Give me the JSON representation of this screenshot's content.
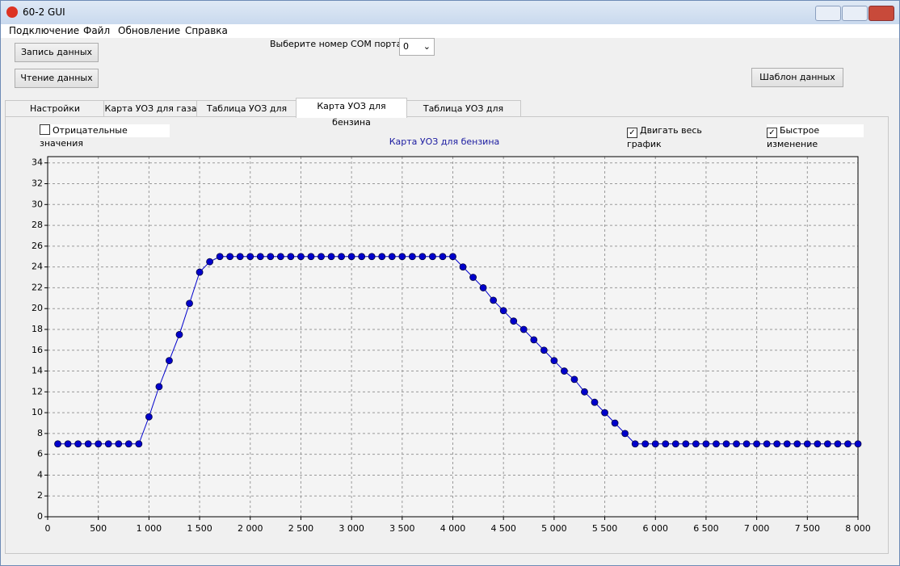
{
  "window": {
    "title": "60-2 GUI"
  },
  "menu": [
    "Подключение",
    "Файл",
    "Обновление",
    "Справка"
  ],
  "buttons": {
    "write": "Запись данных",
    "read": "Чтение данных",
    "template": "Шаблон данных"
  },
  "com_port": {
    "label": "Выберите номер COM порта",
    "value": "0"
  },
  "tabs": [
    {
      "label": "Настройки вариатора",
      "selected": false
    },
    {
      "label": "Карта УОЗ для газа",
      "selected": false
    },
    {
      "label": "Таблица УОЗ для газа",
      "selected": false
    },
    {
      "label": "Карта УОЗ для бензина",
      "selected": true
    },
    {
      "label": "Таблица УОЗ для бензина",
      "selected": false
    }
  ],
  "checkboxes": [
    {
      "label": "Отрицательные значения",
      "checked": false
    },
    {
      "label": "Двигать весь график",
      "checked": true
    },
    {
      "label": "Быстрое изменение",
      "checked": true
    }
  ],
  "chart_data": {
    "type": "line",
    "title": "Карта УОЗ для бензина",
    "color": "#0000cc",
    "grid": true,
    "x": [
      100,
      200,
      300,
      400,
      500,
      600,
      700,
      800,
      900,
      1000,
      1100,
      1200,
      1300,
      1400,
      1500,
      1600,
      1700,
      1800,
      1900,
      2000,
      2100,
      2200,
      2300,
      2400,
      2500,
      2600,
      2700,
      2800,
      2900,
      3000,
      3100,
      3200,
      3300,
      3400,
      3500,
      3600,
      3700,
      3800,
      3900,
      4000,
      4100,
      4200,
      4300,
      4400,
      4500,
      4600,
      4700,
      4800,
      4900,
      5000,
      5100,
      5200,
      5300,
      5400,
      5500,
      5600,
      5700,
      5800,
      5900,
      6000,
      6100,
      6200,
      6300,
      6400,
      6500,
      6600,
      6700,
      6800,
      6900,
      7000,
      7100,
      7200,
      7300,
      7400,
      7500,
      7600,
      7700,
      7800,
      7900,
      8000
    ],
    "values": [
      7,
      7,
      7,
      7,
      7,
      7,
      7,
      7,
      7,
      9.6,
      12.5,
      15,
      17.5,
      20.5,
      23.5,
      24.5,
      25,
      25,
      25,
      25,
      25,
      25,
      25,
      25,
      25,
      25,
      25,
      25,
      25,
      25,
      25,
      25,
      25,
      25,
      25,
      25,
      25,
      25,
      25,
      25,
      24,
      23,
      22,
      20.8,
      19.8,
      18.8,
      18,
      17,
      16,
      15,
      14,
      13.2,
      12,
      11,
      10,
      9,
      8,
      7,
      7,
      7,
      7,
      7,
      7,
      7,
      7,
      7,
      7,
      7,
      7,
      7,
      7,
      7,
      7,
      7,
      7,
      7,
      7,
      7,
      7,
      7
    ],
    "xlim": [
      0,
      8000
    ],
    "xticks": [
      0,
      500,
      {
        "value": 1000,
        "label": "1 000"
      },
      {
        "value": 1500,
        "label": "1 500"
      },
      {
        "value": 2000,
        "label": "2 000"
      },
      {
        "value": 2500,
        "label": "2 500"
      },
      {
        "value": 3000,
        "label": "3 000"
      },
      {
        "value": 3500,
        "label": "3 500"
      },
      {
        "value": 4000,
        "label": "4 000"
      },
      {
        "value": 4500,
        "label": "4 500"
      },
      {
        "value": 5000,
        "label": "5 000"
      },
      {
        "value": 5500,
        "label": "5 500"
      },
      {
        "value": 6000,
        "label": "6 000"
      },
      {
        "value": 6500,
        "label": "6 500"
      },
      {
        "value": 7000,
        "label": "7 000"
      },
      {
        "value": 7500,
        "label": "7 500"
      },
      {
        "value": 8000,
        "label": "8 000"
      }
    ],
    "ylim": [
      0,
      34.6
    ],
    "yticks": [
      0,
      2,
      4,
      6,
      8,
      10,
      12,
      14,
      16,
      18,
      20,
      22,
      24,
      26,
      28,
      30,
      32,
      34
    ]
  }
}
